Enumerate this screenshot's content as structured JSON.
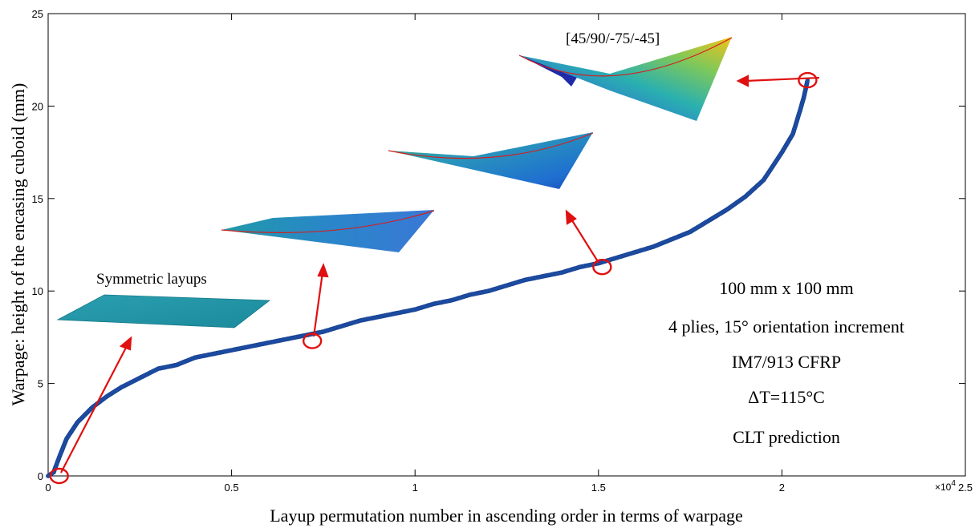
{
  "chart_data": {
    "type": "scatter",
    "xlabel": "Layup permutation number in ascending order in terms of warpage",
    "ylabel": "Warpage: height of the encasing cuboid (mm)",
    "x_multiplier_label": "×10",
    "x_multiplier_exp": "4",
    "xlim": [
      0,
      25000
    ],
    "ylim": [
      0,
      25
    ],
    "x_tick_labels": [
      "0",
      "0.5",
      "1",
      "1.5",
      "2",
      "2.5"
    ],
    "y_tick_labels": [
      "0",
      "5",
      "10",
      "15",
      "20",
      "25"
    ],
    "grid": false,
    "marker_color": "#1f4fa8",
    "highlight_color": "#e01010",
    "series": [
      {
        "values": [
          [
            0,
            0
          ],
          [
            150,
            0.2
          ],
          [
            300,
            1.0
          ],
          [
            500,
            2.0
          ],
          [
            800,
            2.9
          ],
          [
            1200,
            3.7
          ],
          [
            1600,
            4.3
          ],
          [
            2000,
            4.8
          ],
          [
            2500,
            5.3
          ],
          [
            3000,
            5.8
          ],
          [
            3500,
            6.0
          ],
          [
            4000,
            6.4
          ],
          [
            4500,
            6.6
          ],
          [
            5000,
            6.8
          ],
          [
            5500,
            7.0
          ],
          [
            6000,
            7.2
          ],
          [
            6500,
            7.4
          ],
          [
            7000,
            7.6
          ],
          [
            7500,
            7.8
          ],
          [
            8000,
            8.1
          ],
          [
            8500,
            8.4
          ],
          [
            9000,
            8.6
          ],
          [
            9500,
            8.8
          ],
          [
            10000,
            9.0
          ],
          [
            10500,
            9.3
          ],
          [
            11000,
            9.5
          ],
          [
            11500,
            9.8
          ],
          [
            12000,
            10.0
          ],
          [
            12500,
            10.3
          ],
          [
            13000,
            10.6
          ],
          [
            13500,
            10.8
          ],
          [
            14000,
            11.0
          ],
          [
            14500,
            11.3
          ],
          [
            15000,
            11.5
          ],
          [
            15500,
            11.8
          ],
          [
            16000,
            12.1
          ],
          [
            16500,
            12.4
          ],
          [
            17000,
            12.8
          ],
          [
            17500,
            13.2
          ],
          [
            18000,
            13.8
          ],
          [
            18500,
            14.4
          ],
          [
            19000,
            15.1
          ],
          [
            19500,
            16.0
          ],
          [
            20000,
            17.5
          ],
          [
            20300,
            18.5
          ],
          [
            20500,
            19.8
          ],
          [
            20600,
            20.5
          ],
          [
            20700,
            21.4
          ]
        ]
      }
    ],
    "highlighted_points": [
      {
        "x": 300,
        "y": 0
      },
      {
        "x": 7200,
        "y": 7.3
      },
      {
        "x": 15100,
        "y": 11.3
      },
      {
        "x": 20700,
        "y": 21.4
      }
    ],
    "annotations": {
      "symmetric": "Symmetric layups",
      "layup_label": "[45/90/-75/-45]",
      "info_lines": [
        "100 mm x 100 mm",
        "4 plies, 15° orientation increment",
        "IM7/913 CFRP",
        "ΔT=115°C",
        "CLT prediction"
      ]
    }
  }
}
